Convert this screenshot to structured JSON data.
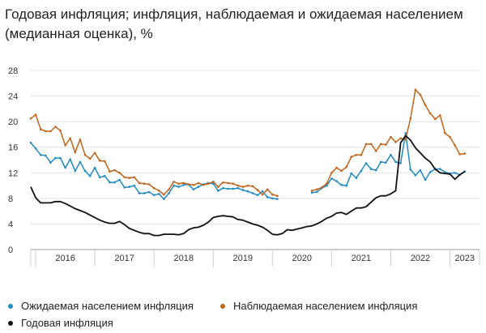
{
  "title": "Годовая инфляция; инфляция, наблюдаемая и ожидаемая населением (медианная оценка), %",
  "colors": {
    "expected": "#1f8bc4",
    "observed": "#c0641a",
    "annual": "#111111",
    "grid": "#e3e3e3",
    "axis": "#999999"
  },
  "legend": {
    "expected": "Ожидаемая населением инфляция",
    "observed": "Наблюдаемая населением инфляция",
    "annual": "Годовая инфляция"
  },
  "chart_data": {
    "type": "line",
    "title": "Годовая инфляция; инфляция, наблюдаемая и ожидаемая населением (медианная оценка), %",
    "xlabel": "",
    "ylabel": "",
    "x_start": "2015-12",
    "x_end": "2023-07",
    "ylim": [
      0,
      28
    ],
    "yticks": [
      "0",
      "4",
      "8",
      "12",
      "16",
      "20",
      "24",
      "28"
    ],
    "xtick_labels": [
      "2016",
      "2017",
      "2018",
      "2019",
      "2020",
      "2021",
      "2022",
      "2023"
    ],
    "grid": true,
    "legend_position": "bottom",
    "series": [
      {
        "name": "Ожидаемая населением инфляция",
        "key": "expected",
        "marker": "dot",
        "points": [
          [
            "2015-12",
            16.7
          ],
          [
            "2016-01",
            15.8
          ],
          [
            "2016-02",
            14.8
          ],
          [
            "2016-03",
            14.7
          ],
          [
            "2016-04",
            13.6
          ],
          [
            "2016-05",
            14.3
          ],
          [
            "2016-06",
            14.3
          ],
          [
            "2016-07",
            12.8
          ],
          [
            "2016-08",
            14.1
          ],
          [
            "2016-09",
            12.3
          ],
          [
            "2016-10",
            13.7
          ],
          [
            "2016-11",
            12.3
          ],
          [
            "2016-12",
            11.5
          ],
          [
            "2017-01",
            12.8
          ],
          [
            "2017-02",
            11.3
          ],
          [
            "2017-03",
            11.5
          ],
          [
            "2017-04",
            10.5
          ],
          [
            "2017-05",
            10.5
          ],
          [
            "2017-06",
            10.9
          ],
          [
            "2017-07",
            9.7
          ],
          [
            "2017-08",
            9.8
          ],
          [
            "2017-09",
            10.0
          ],
          [
            "2017-10",
            8.8
          ],
          [
            "2017-11",
            8.8
          ],
          [
            "2017-12",
            9.0
          ],
          [
            "2018-01",
            8.5
          ],
          [
            "2018-02",
            8.7
          ],
          [
            "2018-03",
            7.9
          ],
          [
            "2018-04",
            8.8
          ],
          [
            "2018-05",
            10.0
          ],
          [
            "2018-06",
            9.8
          ],
          [
            "2018-07",
            10.1
          ],
          [
            "2018-08",
            10.2
          ],
          [
            "2018-09",
            9.4
          ],
          [
            "2018-10",
            9.8
          ],
          [
            "2018-11",
            10.2
          ],
          [
            "2018-12",
            10.4
          ],
          [
            "2019-01",
            10.3
          ],
          [
            "2019-02",
            9.2
          ],
          [
            "2019-03",
            9.6
          ],
          [
            "2019-04",
            9.5
          ],
          [
            "2019-05",
            9.5
          ],
          [
            "2019-06",
            9.6
          ],
          [
            "2019-07",
            9.3
          ],
          [
            "2019-08",
            9.1
          ],
          [
            "2019-09",
            8.8
          ],
          [
            "2019-10",
            8.5
          ],
          [
            "2019-11",
            9.1
          ],
          [
            "2019-12",
            8.2
          ],
          [
            "2020-01",
            8.0
          ],
          [
            "2020-02",
            7.9
          ],
          [
            "2020-03",
            null
          ],
          [
            "2020-04",
            null
          ],
          [
            "2020-05",
            null
          ],
          [
            "2020-06",
            null
          ],
          [
            "2020-07",
            null
          ],
          [
            "2020-08",
            null
          ],
          [
            "2020-09",
            8.9
          ],
          [
            "2020-10",
            9.0
          ],
          [
            "2020-11",
            9.6
          ],
          [
            "2020-12",
            10.0
          ],
          [
            "2021-01",
            11.1
          ],
          [
            "2021-02",
            10.7
          ],
          [
            "2021-03",
            10.1
          ],
          [
            "2021-04",
            10.0
          ],
          [
            "2021-05",
            11.9
          ],
          [
            "2021-06",
            11.2
          ],
          [
            "2021-07",
            12.3
          ],
          [
            "2021-08",
            13.5
          ],
          [
            "2021-09",
            12.6
          ],
          [
            "2021-10",
            12.4
          ],
          [
            "2021-11",
            13.7
          ],
          [
            "2021-12",
            13.6
          ],
          [
            "2022-01",
            14.8
          ],
          [
            "2022-02",
            13.7
          ],
          [
            "2022-03",
            13.5
          ],
          [
            "2022-04",
            18.2
          ],
          [
            "2022-05",
            12.5
          ],
          [
            "2022-06",
            11.6
          ],
          [
            "2022-07",
            12.4
          ],
          [
            "2022-08",
            10.9
          ],
          [
            "2022-09",
            12.1
          ],
          [
            "2022-10",
            12.6
          ],
          [
            "2022-11",
            12.6
          ],
          [
            "2022-12",
            12.1
          ],
          [
            "2023-01",
            11.9
          ],
          [
            "2023-02",
            12.0
          ],
          [
            "2023-03",
            11.7
          ],
          [
            "2023-04",
            12.2
          ]
        ]
      },
      {
        "name": "Наблюдаемая населением инфляция",
        "key": "observed",
        "marker": "dot",
        "points": [
          [
            "2015-12",
            20.5
          ],
          [
            "2016-01",
            21.1
          ],
          [
            "2016-02",
            18.8
          ],
          [
            "2016-03",
            18.5
          ],
          [
            "2016-04",
            18.5
          ],
          [
            "2016-05",
            19.2
          ],
          [
            "2016-06",
            18.6
          ],
          [
            "2016-07",
            16.3
          ],
          [
            "2016-08",
            17.4
          ],
          [
            "2016-09",
            15.2
          ],
          [
            "2016-10",
            17.2
          ],
          [
            "2016-11",
            14.8
          ],
          [
            "2016-12",
            14.2
          ],
          [
            "2017-01",
            15.1
          ],
          [
            "2017-02",
            13.9
          ],
          [
            "2017-03",
            13.8
          ],
          [
            "2017-04",
            12.2
          ],
          [
            "2017-05",
            12.4
          ],
          [
            "2017-06",
            12.0
          ],
          [
            "2017-07",
            11.3
          ],
          [
            "2017-08",
            11.2
          ],
          [
            "2017-09",
            11.3
          ],
          [
            "2017-10",
            10.4
          ],
          [
            "2017-11",
            10.3
          ],
          [
            "2017-12",
            10.2
          ],
          [
            "2018-01",
            9.6
          ],
          [
            "2018-02",
            9.2
          ],
          [
            "2018-03",
            8.6
          ],
          [
            "2018-04",
            9.4
          ],
          [
            "2018-05",
            10.6
          ],
          [
            "2018-06",
            10.3
          ],
          [
            "2018-07",
            10.4
          ],
          [
            "2018-08",
            10.2
          ],
          [
            "2018-09",
            10.1
          ],
          [
            "2018-10",
            10.4
          ],
          [
            "2018-11",
            10.1
          ],
          [
            "2018-12",
            10.3
          ],
          [
            "2019-01",
            10.6
          ],
          [
            "2019-02",
            9.8
          ],
          [
            "2019-03",
            10.5
          ],
          [
            "2019-04",
            10.4
          ],
          [
            "2019-05",
            10.3
          ],
          [
            "2019-06",
            10.0
          ],
          [
            "2019-07",
            9.8
          ],
          [
            "2019-08",
            10.0
          ],
          [
            "2019-09",
            9.9
          ],
          [
            "2019-10",
            9.3
          ],
          [
            "2019-11",
            8.6
          ],
          [
            "2019-12",
            9.4
          ],
          [
            "2020-01",
            8.6
          ],
          [
            "2020-02",
            8.4
          ],
          [
            "2020-03",
            null
          ],
          [
            "2020-04",
            null
          ],
          [
            "2020-05",
            null
          ],
          [
            "2020-06",
            null
          ],
          [
            "2020-07",
            null
          ],
          [
            "2020-08",
            null
          ],
          [
            "2020-09",
            9.2
          ],
          [
            "2020-10",
            9.4
          ],
          [
            "2020-11",
            9.7
          ],
          [
            "2020-12",
            10.3
          ],
          [
            "2021-01",
            12.0
          ],
          [
            "2021-02",
            12.8
          ],
          [
            "2021-03",
            12.3
          ],
          [
            "2021-04",
            12.9
          ],
          [
            "2021-05",
            14.5
          ],
          [
            "2021-06",
            14.8
          ],
          [
            "2021-07",
            14.8
          ],
          [
            "2021-08",
            16.5
          ],
          [
            "2021-09",
            16.5
          ],
          [
            "2021-10",
            15.4
          ],
          [
            "2021-11",
            16.5
          ],
          [
            "2021-12",
            16.4
          ],
          [
            "2022-01",
            17.6
          ],
          [
            "2022-02",
            16.8
          ],
          [
            "2022-03",
            17.4
          ],
          [
            "2022-04",
            17.2
          ],
          [
            "2022-05",
            20.5
          ],
          [
            "2022-06",
            25.0
          ],
          [
            "2022-07",
            24.2
          ],
          [
            "2022-08",
            22.6
          ],
          [
            "2022-09",
            21.3
          ],
          [
            "2022-10",
            20.4
          ],
          [
            "2022-11",
            21.0
          ],
          [
            "2022-12",
            18.2
          ],
          [
            "2023-01",
            17.6
          ],
          [
            "2023-02",
            16.3
          ],
          [
            "2023-03",
            14.9
          ],
          [
            "2023-04",
            15.0
          ]
        ]
      },
      {
        "name": "Годовая инфляция",
        "key": "annual",
        "marker": "none",
        "points": [
          [
            "2015-12",
            9.8
          ],
          [
            "2016-01",
            8.1
          ],
          [
            "2016-02",
            7.3
          ],
          [
            "2016-03",
            7.3
          ],
          [
            "2016-04",
            7.3
          ],
          [
            "2016-05",
            7.5
          ],
          [
            "2016-06",
            7.5
          ],
          [
            "2016-07",
            7.2
          ],
          [
            "2016-08",
            6.8
          ],
          [
            "2016-09",
            6.4
          ],
          [
            "2016-10",
            6.1
          ],
          [
            "2016-11",
            5.8
          ],
          [
            "2016-12",
            5.4
          ],
          [
            "2017-01",
            5.0
          ],
          [
            "2017-02",
            4.6
          ],
          [
            "2017-03",
            4.3
          ],
          [
            "2017-04",
            4.1
          ],
          [
            "2017-05",
            4.1
          ],
          [
            "2017-06",
            4.4
          ],
          [
            "2017-07",
            3.9
          ],
          [
            "2017-08",
            3.3
          ],
          [
            "2017-09",
            3.0
          ],
          [
            "2017-10",
            2.7
          ],
          [
            "2017-11",
            2.5
          ],
          [
            "2017-12",
            2.5
          ],
          [
            "2018-01",
            2.2
          ],
          [
            "2018-02",
            2.2
          ],
          [
            "2018-03",
            2.4
          ],
          [
            "2018-04",
            2.4
          ],
          [
            "2018-05",
            2.4
          ],
          [
            "2018-06",
            2.3
          ],
          [
            "2018-07",
            2.5
          ],
          [
            "2018-08",
            3.1
          ],
          [
            "2018-09",
            3.4
          ],
          [
            "2018-10",
            3.5
          ],
          [
            "2018-11",
            3.8
          ],
          [
            "2018-12",
            4.3
          ],
          [
            "2019-01",
            5.0
          ],
          [
            "2019-02",
            5.2
          ],
          [
            "2019-03",
            5.3
          ],
          [
            "2019-04",
            5.2
          ],
          [
            "2019-05",
            5.1
          ],
          [
            "2019-06",
            4.7
          ],
          [
            "2019-07",
            4.6
          ],
          [
            "2019-08",
            4.3
          ],
          [
            "2019-09",
            4.0
          ],
          [
            "2019-10",
            3.8
          ],
          [
            "2019-11",
            3.5
          ],
          [
            "2019-12",
            3.0
          ],
          [
            "2020-01",
            2.4
          ],
          [
            "2020-02",
            2.3
          ],
          [
            "2020-03",
            2.5
          ],
          [
            "2020-04",
            3.1
          ],
          [
            "2020-05",
            3.0
          ],
          [
            "2020-06",
            3.2
          ],
          [
            "2020-07",
            3.4
          ],
          [
            "2020-08",
            3.6
          ],
          [
            "2020-09",
            3.7
          ],
          [
            "2020-10",
            4.0
          ],
          [
            "2020-11",
            4.4
          ],
          [
            "2020-12",
            4.9
          ],
          [
            "2021-01",
            5.2
          ],
          [
            "2021-02",
            5.7
          ],
          [
            "2021-03",
            5.8
          ],
          [
            "2021-04",
            5.5
          ],
          [
            "2021-05",
            6.0
          ],
          [
            "2021-06",
            6.5
          ],
          [
            "2021-07",
            6.5
          ],
          [
            "2021-08",
            6.7
          ],
          [
            "2021-09",
            7.4
          ],
          [
            "2021-10",
            8.1
          ],
          [
            "2021-11",
            8.4
          ],
          [
            "2021-12",
            8.4
          ],
          [
            "2022-01",
            8.7
          ],
          [
            "2022-02",
            9.2
          ],
          [
            "2022-03",
            16.7
          ],
          [
            "2022-04",
            17.8
          ],
          [
            "2022-05",
            17.1
          ],
          [
            "2022-06",
            15.9
          ],
          [
            "2022-07",
            15.1
          ],
          [
            "2022-08",
            14.3
          ],
          [
            "2022-09",
            13.7
          ],
          [
            "2022-10",
            12.6
          ],
          [
            "2022-11",
            12.0
          ],
          [
            "2022-12",
            11.9
          ],
          [
            "2023-01",
            11.8
          ],
          [
            "2023-02",
            11.0
          ],
          [
            "2023-03",
            11.7
          ],
          [
            "2023-04",
            12.2
          ]
        ]
      }
    ]
  }
}
